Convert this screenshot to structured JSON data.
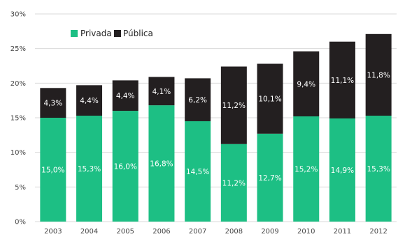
{
  "colors": {
    "privada": "#1dbf84",
    "publica": "#231f20",
    "grid": "#d9d9d9",
    "axis_text": "#444444",
    "label_text": "#ffffff"
  },
  "chart_data": {
    "type": "bar",
    "stacked": true,
    "title": "",
    "xlabel": "",
    "ylabel": "",
    "ylim": [
      0,
      30
    ],
    "yticks": [
      0,
      5,
      10,
      15,
      20,
      25,
      30
    ],
    "ytick_labels": [
      "0%",
      "5%",
      "10%",
      "15%",
      "20%",
      "25%",
      "30%"
    ],
    "grid": true,
    "legend_position": "top-left",
    "categories": [
      "2003",
      "2004",
      "2005",
      "2006",
      "2007",
      "2008",
      "2009",
      "2010",
      "2011",
      "2012"
    ],
    "series": [
      {
        "name": "Privada",
        "color": "#1dbf84",
        "values": [
          15.0,
          15.3,
          16.0,
          16.8,
          14.5,
          11.2,
          12.7,
          15.2,
          14.9,
          15.3
        ],
        "labels": [
          "15,0%",
          "15,3%",
          "16,0%",
          "16,8%",
          "14,5%",
          "11,2%",
          "12,7%",
          "15,2%",
          "14,9%",
          "15,3%"
        ]
      },
      {
        "name": "Pública",
        "color": "#231f20",
        "values": [
          4.3,
          4.4,
          4.4,
          4.1,
          6.2,
          11.2,
          10.1,
          9.4,
          11.1,
          11.8
        ],
        "labels": [
          "4,3%",
          "4,4%",
          "4,4%",
          "4,1%",
          "6,2%",
          "11,2%",
          "10,1%",
          "9,4%",
          "11,1%",
          "11,8%"
        ]
      }
    ]
  }
}
